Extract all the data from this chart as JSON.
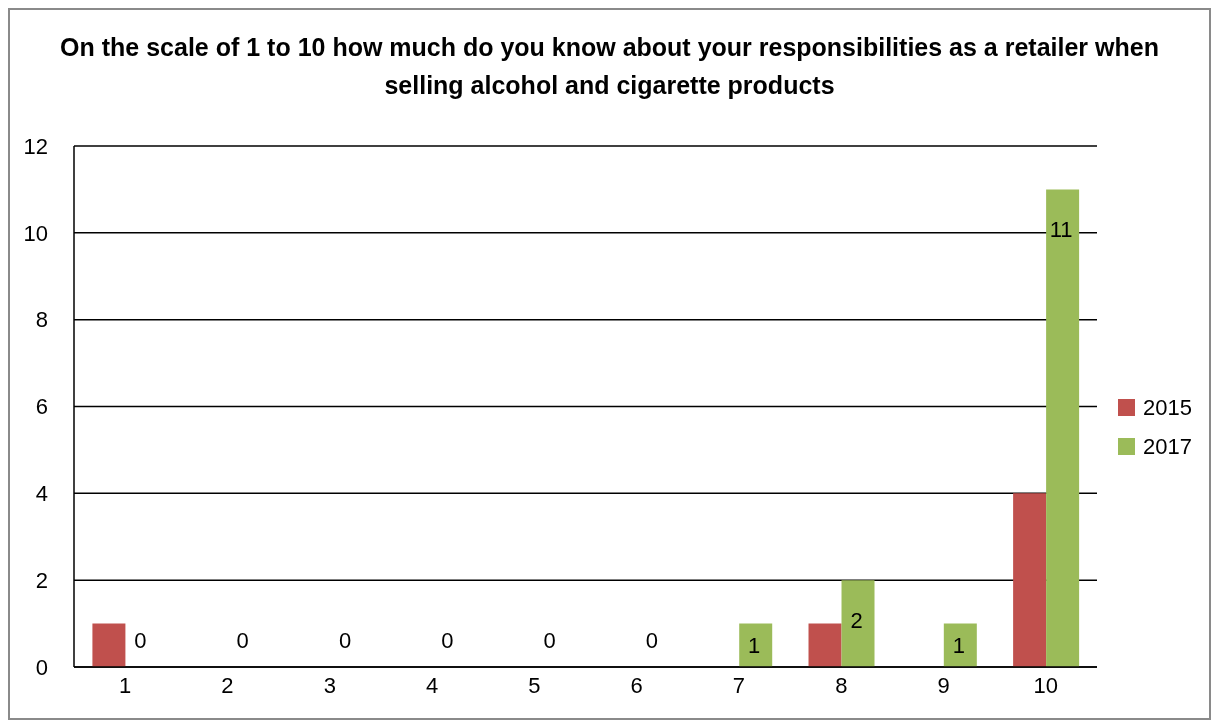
{
  "chart_data": {
    "type": "bar",
    "title": "On the scale of 1 to 10 how much do you know about your responsibilities as a retailer when selling alcohol and cigarette products",
    "categories": [
      "1",
      "2",
      "3",
      "4",
      "5",
      "6",
      "7",
      "8",
      "9",
      "10"
    ],
    "series": [
      {
        "name": "2015",
        "color": "#c0504d",
        "values": [
          1,
          0,
          0,
          0,
          0,
          0,
          0,
          1,
          0,
          4
        ]
      },
      {
        "name": "2017",
        "color": "#9bbb59",
        "values": [
          0,
          0,
          0,
          0,
          0,
          0,
          1,
          2,
          1,
          11
        ],
        "value_labels": [
          "0",
          "0",
          "0",
          "0",
          "0",
          "0",
          "1",
          "2",
          "1",
          "11"
        ]
      }
    ],
    "ylim": [
      0,
      12
    ],
    "yticks": [
      0,
      2,
      4,
      6,
      8,
      10,
      12
    ],
    "grid": "y",
    "legend": "right"
  }
}
